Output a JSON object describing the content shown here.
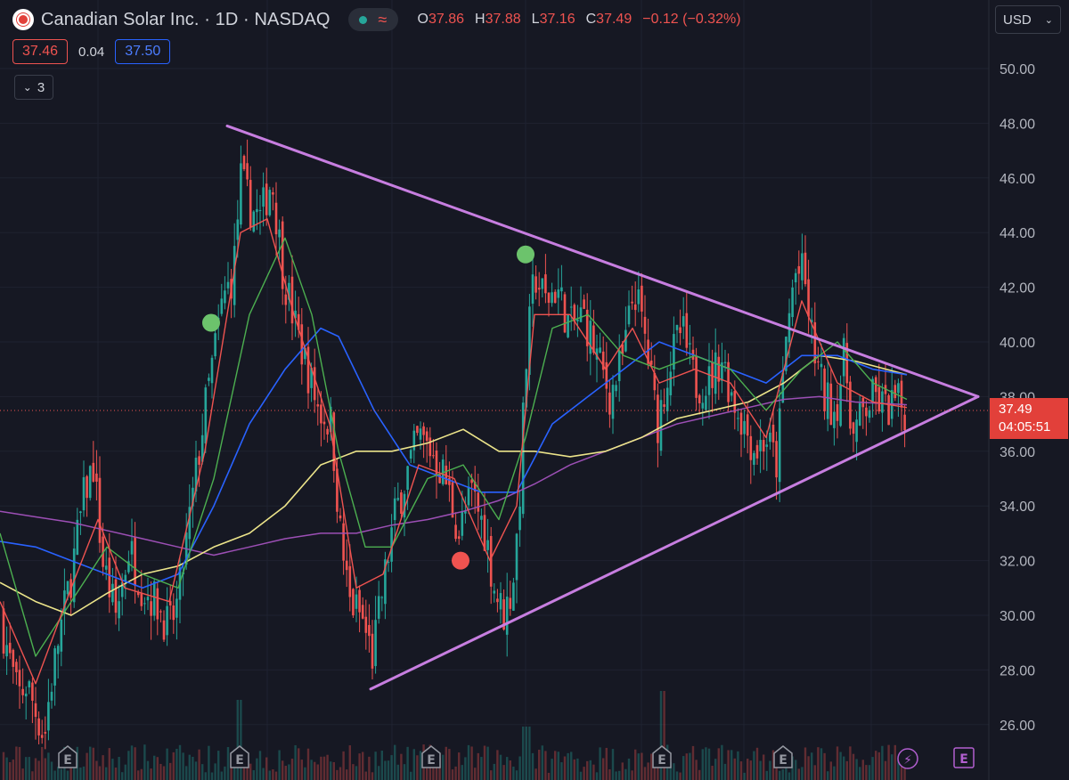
{
  "header": {
    "symbol_title": "Canadian Solar Inc. · 1D · NASDAQ",
    "ohlc": [
      {
        "k": "O",
        "v": "37.86"
      },
      {
        "k": "H",
        "v": "37.88"
      },
      {
        "k": "L",
        "v": "37.16"
      },
      {
        "k": "C",
        "v": "37.49"
      },
      {
        "k": "",
        "v": "−0.12 (−0.32%)"
      }
    ],
    "status_icon": "circle-dot-icon",
    "indicator_icon": "wave-icon"
  },
  "currency": {
    "label": "USD",
    "icon": "chevron-down-icon"
  },
  "quote": {
    "bid": "37.46",
    "spread": "0.04",
    "ask": "37.50"
  },
  "indicators_toggle": {
    "count": "3",
    "icon": "chevron-down-icon"
  },
  "last_price": {
    "value": "37.49",
    "countdown": "04:05:51"
  },
  "colors": {
    "up": "#26a69a",
    "down": "#ef5350",
    "triangle": "#c77ee0",
    "ema_blue": "#2962ff",
    "ma_yellow": "#ece48a",
    "ma_purple": "#9c4fb5"
  },
  "chart_data": {
    "type": "candlestick",
    "y_ticks": [
      "50.00",
      "48.00",
      "46.00",
      "44.00",
      "42.00",
      "40.00",
      "38.00",
      "36.00",
      "34.00",
      "32.00",
      "30.00",
      "28.00",
      "26.00"
    ],
    "ylim": [
      24.6,
      51.4
    ],
    "approx_close_path": [
      [
        0,
        30.0
      ],
      [
        10,
        28.5
      ],
      [
        20,
        27.0
      ],
      [
        30,
        27.5
      ],
      [
        40,
        26.5
      ],
      [
        50,
        25.5
      ],
      [
        55,
        27.0
      ],
      [
        65,
        29.0
      ],
      [
        80,
        31.5
      ],
      [
        95,
        34.5
      ],
      [
        105,
        35.5
      ],
      [
        115,
        32.0
      ],
      [
        130,
        30.0
      ],
      [
        145,
        32.5
      ],
      [
        160,
        31.0
      ],
      [
        175,
        30.5
      ],
      [
        190,
        29.5
      ],
      [
        200,
        30.5
      ],
      [
        215,
        34.0
      ],
      [
        230,
        37.5
      ],
      [
        240,
        39.5
      ],
      [
        250,
        41.5
      ],
      [
        262,
        42.5
      ],
      [
        270,
        46.0
      ],
      [
        280,
        45.0
      ],
      [
        292,
        44.5
      ],
      [
        305,
        46.0
      ],
      [
        318,
        42.5
      ],
      [
        332,
        40.5
      ],
      [
        345,
        39.0
      ],
      [
        358,
        37.5
      ],
      [
        372,
        37.0
      ],
      [
        382,
        33.0
      ],
      [
        392,
        30.5
      ],
      [
        405,
        30.0
      ],
      [
        418,
        28.5
      ],
      [
        430,
        31.0
      ],
      [
        442,
        33.5
      ],
      [
        455,
        35.0
      ],
      [
        470,
        36.5
      ],
      [
        485,
        36.0
      ],
      [
        500,
        35.0
      ],
      [
        515,
        33.0
      ],
      [
        530,
        34.5
      ],
      [
        545,
        33.0
      ],
      [
        555,
        31.0
      ],
      [
        565,
        30.0
      ],
      [
        575,
        31.0
      ],
      [
        582,
        33.5
      ],
      [
        590,
        39.0
      ],
      [
        600,
        42.5
      ],
      [
        612,
        41.5
      ],
      [
        625,
        42.0
      ],
      [
        640,
        40.5
      ],
      [
        655,
        41.0
      ],
      [
        670,
        39.5
      ],
      [
        685,
        38.0
      ],
      [
        700,
        39.5
      ],
      [
        712,
        42.0
      ],
      [
        725,
        40.0
      ],
      [
        738,
        37.0
      ],
      [
        750,
        39.0
      ],
      [
        765,
        40.5
      ],
      [
        780,
        38.5
      ],
      [
        795,
        38.5
      ],
      [
        810,
        39.5
      ],
      [
        822,
        38.0
      ],
      [
        835,
        37.0
      ],
      [
        848,
        36.0
      ],
      [
        860,
        36.5
      ],
      [
        872,
        35.5
      ],
      [
        882,
        40.0
      ],
      [
        892,
        42.5
      ],
      [
        902,
        42.5
      ],
      [
        912,
        40.0
      ],
      [
        925,
        38.0
      ],
      [
        938,
        37.5
      ],
      [
        948,
        39.5
      ],
      [
        958,
        36.5
      ],
      [
        970,
        37.5
      ],
      [
        982,
        38.0
      ],
      [
        995,
        37.5
      ],
      [
        1005,
        37.8
      ],
      [
        1018,
        37.49
      ]
    ],
    "ema_fast_red": [
      [
        0,
        30.5
      ],
      [
        40,
        27.5
      ],
      [
        80,
        31.0
      ],
      [
        110,
        33.5
      ],
      [
        140,
        31.0
      ],
      [
        190,
        30.5
      ],
      [
        230,
        36.0
      ],
      [
        270,
        44.0
      ],
      [
        300,
        44.5
      ],
      [
        330,
        41.0
      ],
      [
        370,
        37.0
      ],
      [
        400,
        31.0
      ],
      [
        430,
        31.5
      ],
      [
        470,
        35.5
      ],
      [
        510,
        35.0
      ],
      [
        550,
        32.0
      ],
      [
        580,
        34.0
      ],
      [
        600,
        41.0
      ],
      [
        640,
        41.0
      ],
      [
        680,
        39.0
      ],
      [
        710,
        40.5
      ],
      [
        740,
        38.5
      ],
      [
        780,
        39.0
      ],
      [
        820,
        38.5
      ],
      [
        860,
        36.5
      ],
      [
        900,
        41.5
      ],
      [
        940,
        38.5
      ],
      [
        980,
        37.8
      ],
      [
        1018,
        37.6
      ]
    ],
    "ema_mid_green": [
      [
        0,
        33.0
      ],
      [
        40,
        28.5
      ],
      [
        80,
        30.5
      ],
      [
        120,
        32.5
      ],
      [
        160,
        31.5
      ],
      [
        200,
        31.0
      ],
      [
        240,
        35.0
      ],
      [
        280,
        41.0
      ],
      [
        320,
        43.8
      ],
      [
        350,
        41.0
      ],
      [
        380,
        36.0
      ],
      [
        410,
        32.5
      ],
      [
        440,
        32.5
      ],
      [
        480,
        35.0
      ],
      [
        520,
        35.5
      ],
      [
        560,
        33.5
      ],
      [
        590,
        36.5
      ],
      [
        620,
        40.5
      ],
      [
        660,
        41.0
      ],
      [
        700,
        39.5
      ],
      [
        740,
        39.0
      ],
      [
        780,
        39.5
      ],
      [
        820,
        39.0
      ],
      [
        860,
        37.5
      ],
      [
        900,
        39.0
      ],
      [
        940,
        40.0
      ],
      [
        980,
        38.5
      ],
      [
        1018,
        37.9
      ]
    ],
    "ema_slow_blue": [
      [
        0,
        32.7
      ],
      [
        40,
        32.5
      ],
      [
        80,
        32.0
      ],
      [
        120,
        31.5
      ],
      [
        160,
        31.0
      ],
      [
        200,
        31.5
      ],
      [
        240,
        34.0
      ],
      [
        280,
        37.0
      ],
      [
        320,
        39.0
      ],
      [
        360,
        40.5
      ],
      [
        380,
        40.2
      ],
      [
        420,
        37.5
      ],
      [
        460,
        35.5
      ],
      [
        500,
        35.0
      ],
      [
        540,
        34.5
      ],
      [
        580,
        34.5
      ],
      [
        620,
        37.0
      ],
      [
        660,
        38.0
      ],
      [
        700,
        39.0
      ],
      [
        740,
        40.0
      ],
      [
        780,
        39.5
      ],
      [
        820,
        39.0
      ],
      [
        860,
        38.5
      ],
      [
        900,
        39.5
      ],
      [
        940,
        39.5
      ],
      [
        980,
        39.0
      ],
      [
        1018,
        38.8
      ]
    ],
    "ma_yellow": [
      [
        0,
        31.2
      ],
      [
        40,
        30.5
      ],
      [
        80,
        30.0
      ],
      [
        120,
        30.8
      ],
      [
        160,
        31.5
      ],
      [
        200,
        31.8
      ],
      [
        240,
        32.5
      ],
      [
        280,
        33.0
      ],
      [
        320,
        34.0
      ],
      [
        360,
        35.5
      ],
      [
        400,
        36.0
      ],
      [
        440,
        36.0
      ],
      [
        480,
        36.3
      ],
      [
        520,
        36.8
      ],
      [
        560,
        36.0
      ],
      [
        600,
        36.0
      ],
      [
        640,
        35.8
      ],
      [
        680,
        36.0
      ],
      [
        720,
        36.5
      ],
      [
        760,
        37.2
      ],
      [
        800,
        37.5
      ],
      [
        840,
        37.8
      ],
      [
        880,
        38.5
      ],
      [
        920,
        39.5
      ],
      [
        960,
        39.3
      ],
      [
        1018,
        38.8
      ]
    ],
    "ma_purple": [
      [
        0,
        33.8
      ],
      [
        40,
        33.6
      ],
      [
        80,
        33.4
      ],
      [
        120,
        33.1
      ],
      [
        160,
        32.8
      ],
      [
        200,
        32.5
      ],
      [
        240,
        32.2
      ],
      [
        280,
        32.5
      ],
      [
        320,
        32.8
      ],
      [
        360,
        33.0
      ],
      [
        400,
        33.0
      ],
      [
        440,
        33.3
      ],
      [
        480,
        33.5
      ],
      [
        520,
        33.8
      ],
      [
        560,
        34.2
      ],
      [
        600,
        34.8
      ],
      [
        640,
        35.5
      ],
      [
        680,
        36.0
      ],
      [
        720,
        36.5
      ],
      [
        760,
        37.0
      ],
      [
        800,
        37.3
      ],
      [
        840,
        37.6
      ],
      [
        880,
        37.9
      ],
      [
        920,
        38.0
      ],
      [
        960,
        37.8
      ],
      [
        1018,
        37.7
      ]
    ],
    "trendlines": [
      {
        "from": [
          255,
          47.9
        ],
        "to": [
          1098,
          38.0
        ]
      },
      {
        "from": [
          416,
          27.3
        ],
        "to": [
          1098,
          38.0
        ]
      }
    ],
    "signal_dots": [
      {
        "x": 237,
        "price": 40.7,
        "color": "#6cc36c"
      },
      {
        "x": 590,
        "price": 43.2,
        "color": "#6cc36c"
      },
      {
        "x": 517,
        "price": 32.0,
        "color": "#ef5350"
      }
    ],
    "earnings_markers": [
      {
        "x": 76,
        "label": "E"
      },
      {
        "x": 269,
        "label": "E"
      },
      {
        "x": 484,
        "label": "E"
      },
      {
        "x": 743,
        "label": "E"
      },
      {
        "x": 879,
        "label": "E"
      }
    ],
    "future_markers": [
      {
        "x": 1019,
        "label": "⚡",
        "type": "dividend"
      },
      {
        "x": 1082,
        "label": "E",
        "type": "earnings"
      }
    ],
    "last_price_value": 37.49
  }
}
